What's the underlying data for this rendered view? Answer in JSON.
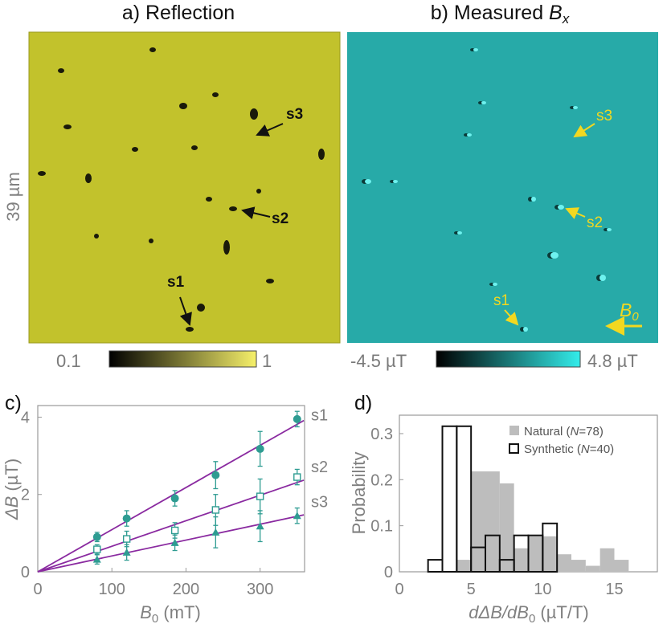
{
  "panels": {
    "a": {
      "title": "a) Reflection",
      "scale_label": "39 µm",
      "annotations": [
        "s3",
        "s2",
        "s1"
      ],
      "colorbar": {
        "min": "0.1",
        "max": "1",
        "colors": [
          "#000000",
          "#f6f06a"
        ]
      },
      "background": "#c2c22c"
    },
    "b": {
      "title_prefix": "b) Measured ",
      "title_var": "B",
      "title_sub": "x",
      "annotations": [
        "s3",
        "s2",
        "s1"
      ],
      "field_label": "B",
      "field_sub": "0",
      "colorbar": {
        "min": "-4.5 µT",
        "max": "4.8 µT",
        "colors": [
          "#000000",
          "#33ecea"
        ]
      },
      "background": "#27aaa8"
    },
    "c": {
      "label": "c)"
    },
    "d": {
      "label": "d)"
    }
  },
  "colors": {
    "teal": "#2e9c92",
    "purple": "#8a2aa0",
    "gray_bar": "#bdbdbd",
    "accent_yellow": "#f2d820"
  },
  "chart_data": [
    {
      "type": "scatter",
      "panel": "c",
      "xlabel_var": "B",
      "xlabel_sub": "0",
      "xlabel_unit": " (mT)",
      "ylabel_var": "ΔB",
      "ylabel_unit": " (µT)",
      "xlim": [
        0,
        360
      ],
      "ylim": [
        0,
        4.3
      ],
      "xticks": [
        "0",
        "100",
        "200",
        "300"
      ],
      "yticks": [
        "0",
        "2",
        "4"
      ],
      "x": [
        80,
        120,
        185,
        240,
        300,
        350
      ],
      "series": [
        {
          "name": "s1",
          "marker": "circle",
          "values": [
            0.9,
            1.38,
            1.9,
            2.5,
            3.18,
            3.95
          ],
          "errors": [
            0.12,
            0.2,
            0.2,
            0.35,
            0.45,
            0.2
          ],
          "fit_slope": 0.0109
        },
        {
          "name": "s2",
          "marker": "square",
          "values": [
            0.58,
            0.85,
            1.07,
            1.6,
            1.95,
            2.45
          ],
          "errors": [
            0.12,
            0.2,
            0.2,
            0.4,
            0.45,
            0.2
          ],
          "fit_slope": 0.0066
        },
        {
          "name": "s3",
          "marker": "triangle",
          "values": [
            0.32,
            0.5,
            0.75,
            1.02,
            1.18,
            1.45
          ],
          "errors": [
            0.12,
            0.2,
            0.2,
            0.4,
            0.4,
            0.2
          ],
          "fit_slope": 0.0041
        }
      ]
    },
    {
      "type": "bar",
      "panel": "d",
      "xlabel": "dΔB/dB",
      "xlabel_sub": "0",
      "xlabel_unit": " (µT/T)",
      "ylabel": "Probability",
      "xlim": [
        0,
        18
      ],
      "ylim": [
        0,
        0.34
      ],
      "xticks": [
        "0",
        "5",
        "10",
        "15"
      ],
      "yticks": [
        "0",
        "0.1",
        "0.2",
        "0.3"
      ],
      "bin_width": 1,
      "series": [
        {
          "name": "Natural (N=78)",
          "legend_pre": "Natural (",
          "legend_var": "N",
          "legend_post": "=78)",
          "style": "filled",
          "bin_starts": [
            4,
            5,
            6,
            7,
            8,
            9,
            10,
            11,
            12,
            13,
            14,
            15
          ],
          "values": [
            0.026,
            0.218,
            0.218,
            0.192,
            0.051,
            0.077,
            0.077,
            0.038,
            0.026,
            0.013,
            0.051,
            0.026
          ]
        },
        {
          "name": "Synthetic (N=40)",
          "legend_pre": "Synthetic (",
          "legend_var": "N",
          "legend_post": "=40)",
          "style": "outline",
          "bin_starts": [
            2,
            3,
            4,
            5,
            6,
            7,
            8,
            9,
            10
          ],
          "values": [
            0.026,
            0.316,
            0.316,
            0.053,
            0.079,
            0.026,
            0.079,
            0.079,
            0.105
          ]
        }
      ]
    }
  ]
}
